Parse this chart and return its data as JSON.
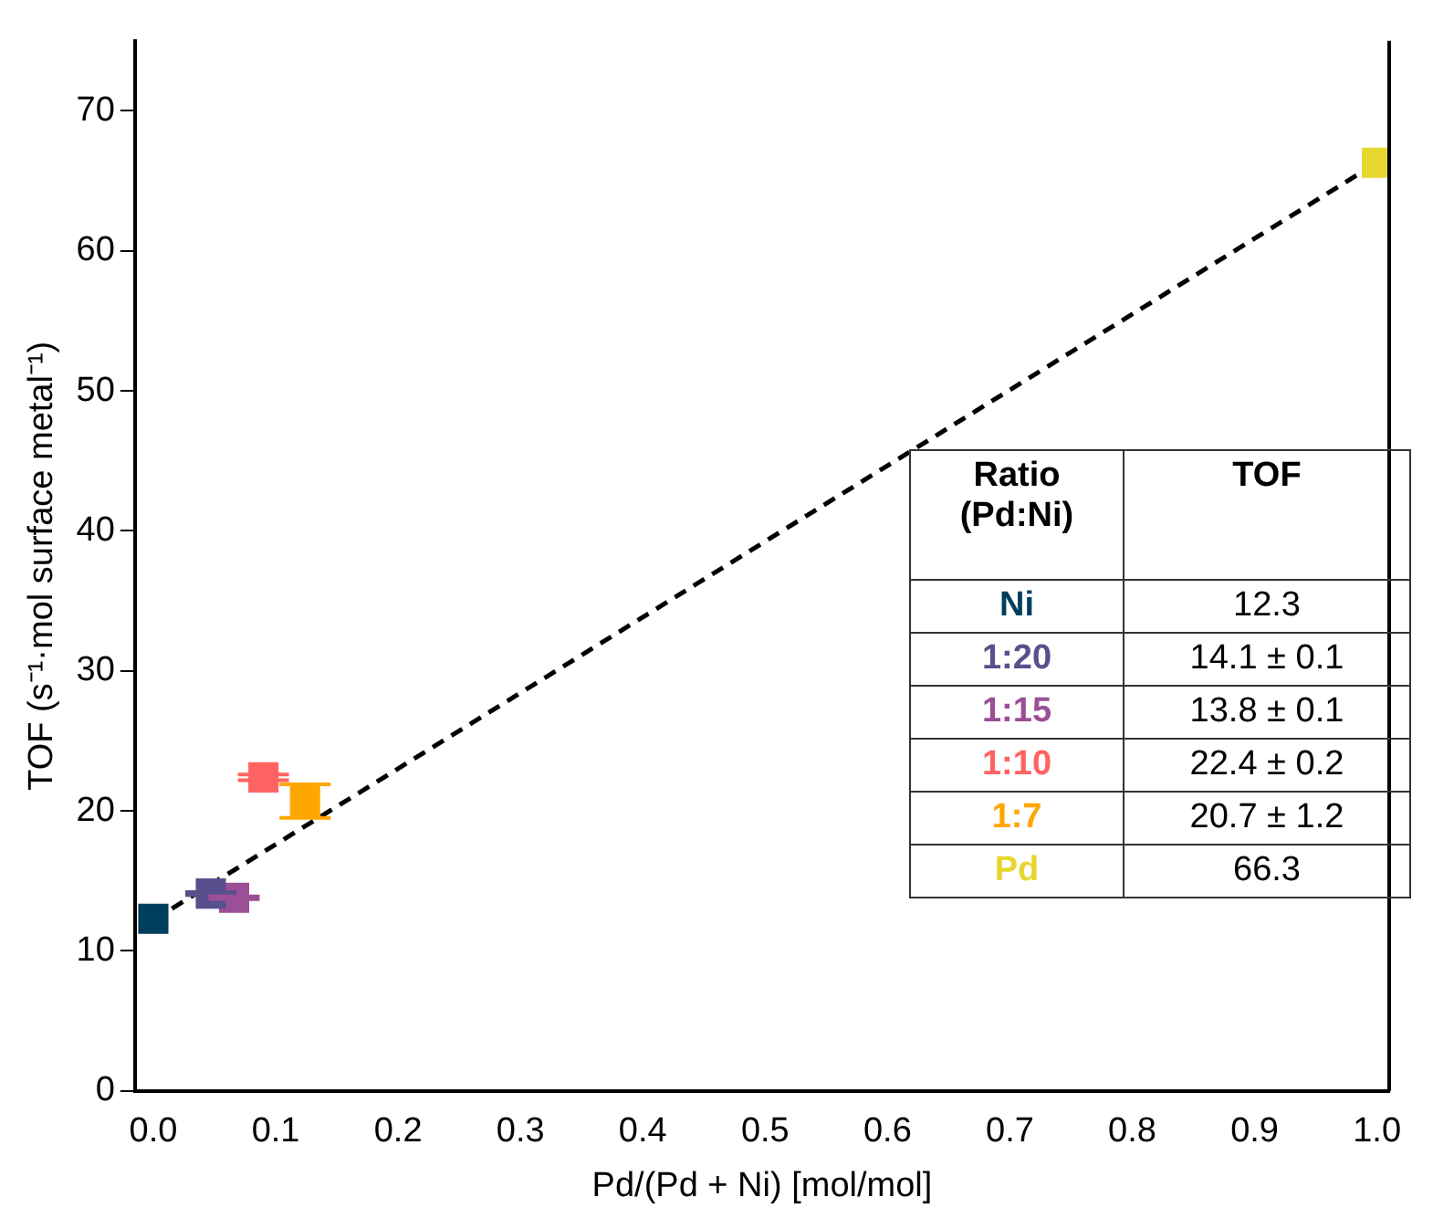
{
  "chart_data": {
    "type": "scatter",
    "xlabel": "Pd/(Pd + Ni) [mol/mol]",
    "ylabel": "TOF (s⁻¹·mol surface metal⁻¹)",
    "annotations": [
      "Ratio (Pd:Ni)",
      "TOF",
      "12.3",
      "14.1 ± 0.1",
      "13.8 ± 0.1",
      "22.4 ± 0.2",
      "20.7 ± 1.2",
      "66.3"
    ],
    "xlim": [
      -0.015,
      1.01
    ],
    "xticks": [
      {
        "value": 0,
        "label": "0.0"
      },
      0.1,
      0.2,
      0.3,
      0.4,
      0.5,
      0.6,
      0.7,
      0.8,
      0.9,
      {
        "value": 1,
        "label": "1.0"
      }
    ],
    "ylim": [
      0,
      75
    ],
    "yticks": [
      0,
      10,
      20,
      30,
      40,
      50,
      60,
      70
    ],
    "grid": false,
    "legend": false,
    "marker": "square",
    "series": [
      {
        "type": "line",
        "color": "#000000",
        "line_style": "dashed",
        "marker": "none",
        "x": [
          0,
          1
        ],
        "values": [
          12.2,
          66.3
        ]
      },
      {
        "name": "Ni",
        "color": "#003f5c",
        "x": [
          0
        ],
        "values": [
          12.3
        ]
      },
      {
        "name": "1:20",
        "color": "#58508d",
        "x": [
          0.047
        ],
        "values": [
          14.1
        ],
        "errors": [
          0.1
        ]
      },
      {
        "name": "1:15",
        "color": "#9b4f96",
        "x": [
          0.066
        ],
        "values": [
          13.8
        ],
        "errors": [
          0.1
        ]
      },
      {
        "name": "1:10",
        "color": "#ff6361",
        "x": [
          0.09
        ],
        "values": [
          22.4
        ],
        "errors": [
          0.2
        ]
      },
      {
        "name": "1:7",
        "color": "#ffa600",
        "x": [
          0.124
        ],
        "values": [
          20.7
        ],
        "errors": [
          1.2
        ]
      },
      {
        "name": "Pd",
        "color": "#e8d630",
        "x": [
          1
        ],
        "values": [
          66.3
        ]
      }
    ]
  }
}
